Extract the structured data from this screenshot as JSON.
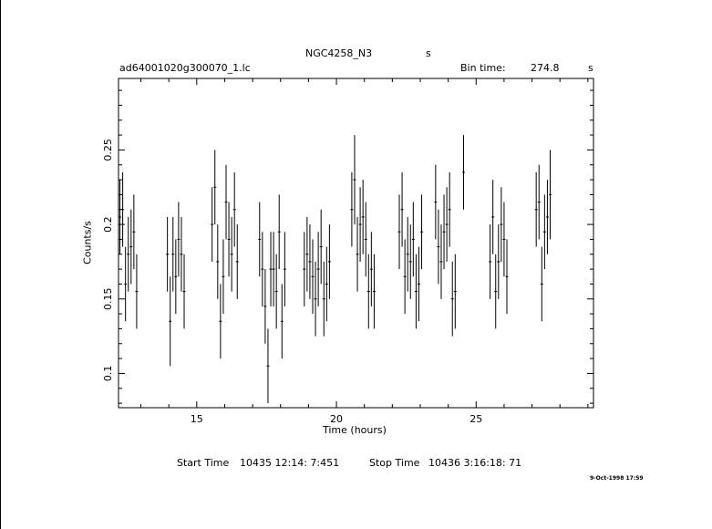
{
  "header": {
    "object": "NGC4258_N3",
    "units": "s",
    "filename": "ad64001020g300070_1.lc",
    "bin_time_label": "Bin time:",
    "bin_time_value": "274.8",
    "bin_time_unit": "s"
  },
  "footer": {
    "start_label": "Start Time",
    "start_value": "10435 12:14: 7:451",
    "stop_label": "Stop Time",
    "stop_value": "10436  3:16:18: 71",
    "stamp": "9-Oct-1998 17:59"
  },
  "chart_data": {
    "type": "scatter",
    "title": "NGC4258_N3",
    "xlabel": "Time (hours)",
    "ylabel": "Counts/s",
    "xlim": [
      12.2,
      29.2
    ],
    "ylim": [
      0.077,
      0.298
    ],
    "xticks": [
      15,
      20,
      25
    ],
    "xtick_labels": [
      "15",
      "20",
      "25"
    ],
    "yticks": [
      0.1,
      0.15,
      0.2,
      0.25
    ],
    "ytick_labels": [
      "0.1",
      "0.15",
      "0.2",
      "0.25"
    ],
    "series": [
      {
        "x": [
          12.25,
          12.35,
          12.45,
          12.55,
          12.65,
          12.75,
          12.85,
          13.95,
          14.05,
          14.15,
          14.25,
          14.35,
          14.45,
          14.55,
          15.55,
          15.65,
          15.75,
          15.85,
          15.95,
          16.05,
          16.15,
          16.25,
          16.35,
          16.45,
          17.25,
          17.35,
          17.45,
          17.55,
          17.65,
          17.75,
          17.85,
          17.95,
          18.05,
          18.15,
          18.85,
          18.95,
          19.05,
          19.15,
          19.25,
          19.35,
          19.45,
          19.55,
          19.65,
          19.75,
          20.55,
          20.65,
          20.75,
          20.85,
          20.95,
          21.05,
          21.15,
          21.25,
          21.35,
          22.25,
          22.35,
          22.45,
          22.55,
          22.65,
          22.75,
          22.85,
          22.95,
          23.05,
          23.55,
          23.65,
          23.75,
          23.85,
          23.95,
          24.05,
          24.15,
          24.25,
          24.55,
          25.5,
          25.6,
          25.7,
          25.8,
          25.9,
          26.0,
          26.1,
          27.15,
          27.25,
          27.35,
          27.45,
          27.55,
          27.65
        ],
        "y": [
          0.205,
          0.21,
          0.16,
          0.18,
          0.185,
          0.195,
          0.155,
          0.18,
          0.135,
          0.18,
          0.165,
          0.19,
          0.18,
          0.155,
          0.2,
          0.225,
          0.175,
          0.135,
          0.165,
          0.215,
          0.19,
          0.18,
          0.21,
          0.175,
          0.19,
          0.17,
          0.145,
          0.105,
          0.17,
          0.17,
          0.155,
          0.195,
          0.135,
          0.17,
          0.17,
          0.18,
          0.175,
          0.165,
          0.15,
          0.17,
          0.185,
          0.15,
          0.16,
          0.175,
          0.21,
          0.23,
          0.18,
          0.2,
          0.205,
          0.19,
          0.155,
          0.17,
          0.155,
          0.195,
          0.21,
          0.165,
          0.18,
          0.175,
          0.19,
          0.155,
          0.16,
          0.195,
          0.215,
          0.185,
          0.175,
          0.195,
          0.2,
          0.21,
          0.15,
          0.155,
          0.235,
          0.175,
          0.205,
          0.155,
          0.175,
          0.2,
          0.19,
          0.165,
          0.21,
          0.215,
          0.16,
          0.195,
          0.205,
          0.22
        ],
        "yerr": [
          0.025,
          0.025,
          0.025,
          0.025,
          0.025,
          0.025,
          0.025,
          0.025,
          0.03,
          0.025,
          0.025,
          0.025,
          0.025,
          0.025,
          0.025,
          0.025,
          0.025,
          0.025,
          0.025,
          0.025,
          0.025,
          0.025,
          0.025,
          0.025,
          0.025,
          0.025,
          0.025,
          0.025,
          0.025,
          0.025,
          0.025,
          0.025,
          0.025,
          0.025,
          0.025,
          0.025,
          0.025,
          0.025,
          0.025,
          0.025,
          0.025,
          0.025,
          0.025,
          0.025,
          0.025,
          0.03,
          0.025,
          0.025,
          0.025,
          0.025,
          0.025,
          0.025,
          0.025,
          0.025,
          0.025,
          0.025,
          0.025,
          0.025,
          0.025,
          0.025,
          0.025,
          0.025,
          0.025,
          0.025,
          0.025,
          0.025,
          0.025,
          0.025,
          0.025,
          0.025,
          0.025,
          0.025,
          0.025,
          0.025,
          0.025,
          0.025,
          0.025,
          0.025,
          0.025,
          0.025,
          0.025,
          0.025,
          0.025,
          0.03
        ]
      }
    ],
    "grid": false,
    "legend": "none",
    "color": "#000000"
  }
}
